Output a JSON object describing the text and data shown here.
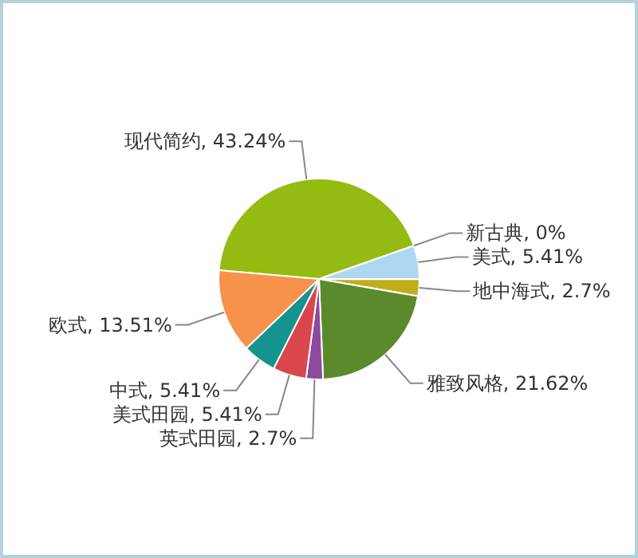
{
  "chart_data": {
    "type": "pie",
    "categories": [
      "现代简约",
      "新古典",
      "美式",
      "地中海式",
      "雅致风格",
      "英式田园",
      "美式田园",
      "中式",
      "欧式"
    ],
    "values": [
      43.24,
      0,
      5.41,
      2.7,
      21.62,
      2.7,
      5.41,
      5.41,
      13.51
    ],
    "value_labels": [
      "43.24%",
      "0%",
      "5.41%",
      "2.7%",
      "21.62%",
      "2.7%",
      "5.41%",
      "5.41%",
      "13.51%"
    ],
    "colors": [
      "#95bb12",
      null,
      "#aed6f1",
      "#bfae1a",
      "#5b8a2c",
      "#8e4a9c",
      "#d9464c",
      "#14938f",
      "#f7924a"
    ]
  }
}
